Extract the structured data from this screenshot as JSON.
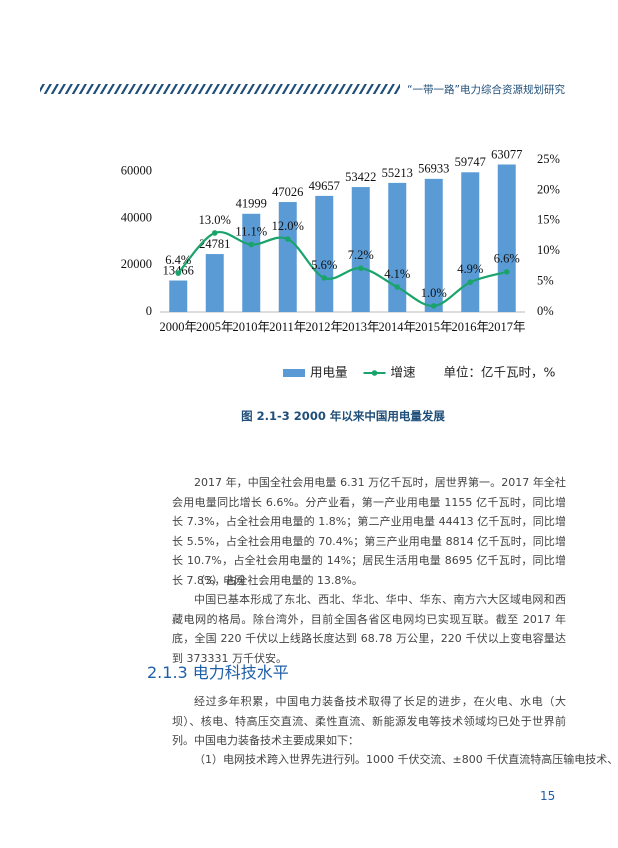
{
  "header": {
    "title": "“一带一路”电力综合资源规划研究"
  },
  "chart_data": {
    "type": "bar",
    "categories": [
      "2000年",
      "2005年",
      "2010年",
      "2011年",
      "2012年",
      "2013年",
      "2014年",
      "2015年",
      "2016年",
      "2017年"
    ],
    "series": [
      {
        "name": "用电量",
        "type": "bar",
        "color": "#5b9bd5",
        "values": [
          13466,
          24781,
          41999,
          47026,
          49657,
          53422,
          55213,
          56933,
          59747,
          63077
        ]
      },
      {
        "name": "增速",
        "type": "line",
        "axis": "y2",
        "color": "#1aa36b",
        "values": [
          6.4,
          13.0,
          11.1,
          12.0,
          5.6,
          7.2,
          4.1,
          1.0,
          4.9,
          6.6
        ],
        "value_labels": [
          "6.4%",
          "13.0%",
          "11.1%",
          "12.0%",
          "5.6%",
          "7.2%",
          "4.1%",
          "1.0%",
          "4.9%",
          "6.6%"
        ]
      }
    ],
    "ylim": [
      0,
      65000
    ],
    "yticks": [
      0,
      20000,
      40000,
      60000
    ],
    "y2lim": [
      0,
      25
    ],
    "y2ticks": [
      {
        "value": 0,
        "label": "0%"
      },
      {
        "value": 5,
        "label": "5%"
      },
      {
        "value": 10,
        "label": "10%"
      },
      {
        "value": 15,
        "label": "15%"
      },
      {
        "value": 20,
        "label": "20%"
      },
      {
        "value": 25,
        "label": "25%"
      }
    ],
    "unit_note": "单位：亿千瓦时，%",
    "legend": "bottom",
    "grid": false
  },
  "caption": "图 2.1-3  2000 年以来中国用电量发展",
  "section_1": {
    "paragraphs": [
      "2017 年，中国全社会用电量 6.31 万亿千瓦时，居世界第一。2017 年全社会用电量同比增长 6.6%。分产业看，第一产业用电量 1155 亿千瓦时，同比增长 7.3%，占全社会用电量的 1.8%；第二产业用电量 44413 亿千瓦时，同比增长 5.5%，占全社会用电量的 70.4%；第三产业用电量 8814 亿千瓦时，同比增长 10.7%，占全社会用电量的 14%；居民生活用电量 8695 亿千瓦时，同比增长 7.8%，占全社会用电量的 13.8%。",
      "（3）电网",
      "中国已基本形成了东北、西北、华北、华中、华东、南方六大区域电网和西藏电网的格局。除台湾外，目前全国各省区电网均已实现互联。截至 2017 年底，全国 220 千伏以上线路长度达到 68.78 万公里，220 千伏以上变电容量达到 373331 万千伏安。"
    ]
  },
  "section_2": {
    "heading": "2.1.3 电力科技水平",
    "paragraphs": [
      "经过多年积累，中国电力装备技术取得了长足的进步，在火电、水电（大坝）、核电、特高压交直流、柔性直流、新能源发电等技术领域均已处于世界前列。中国电力装备技术主要成果如下：",
      "（1）电网技术跨入世界先进行列。1000 千伏交流、±800 千伏直流特高压输电技术、"
    ]
  },
  "page_number": 15
}
